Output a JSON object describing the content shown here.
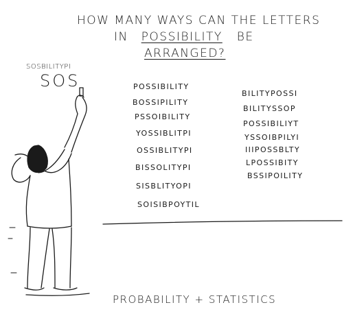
{
  "title": {
    "line1": "HOW MANY WAYS CAN THE LETTERS",
    "line2_prefix": "IN",
    "line2_word": "POSSIBILITY",
    "line2_suffix": "BE",
    "line3": "ARRANGED?"
  },
  "board": {
    "scribble_small": "SOSBILITYPI",
    "scribble_large": "SOS"
  },
  "left_column": [
    "POSSIBILITY",
    "BOSSIPILITY",
    "PSSOIBILITY",
    "YOSSIBLITPI",
    "OSSIBLITYPI",
    "BISSOLITYPI",
    "SISBLITYOPI",
    "SOISIBPOYTIL"
  ],
  "right_column": [
    "BILITYPOSSI",
    "BILITYSSOP",
    "POSSIBILIYT",
    "YSSOIBPILYI",
    "IIIPOSSBLTY",
    "LPOSSIBITY",
    "BSSIPOILITY"
  ],
  "caption": "PROBABILITY + STATISTICS",
  "colors": {
    "ink": "#1a1a1a",
    "paper": "#ffffff"
  }
}
